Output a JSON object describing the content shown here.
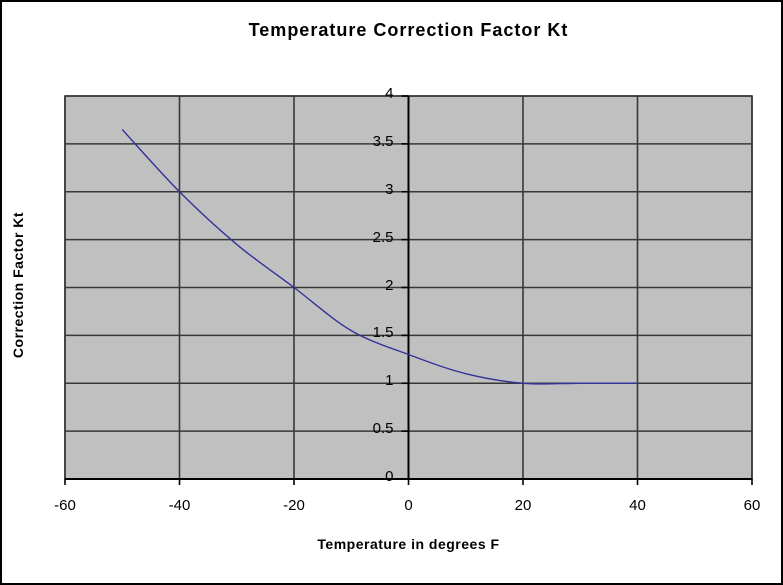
{
  "chart_data": {
    "type": "line",
    "title": "Temperature Correction Factor Kt",
    "xlabel": "Temperature in degrees F",
    "ylabel": "Correction Factor Kt",
    "x": [
      -50,
      -40,
      -30,
      -20,
      -10,
      0,
      10,
      20,
      30,
      40
    ],
    "y": [
      3.65,
      3.0,
      2.45,
      2.0,
      1.55,
      1.3,
      1.1,
      1.0,
      1.0,
      1.0
    ],
    "xlim": [
      -60,
      60
    ],
    "ylim": [
      0,
      4
    ],
    "xticks": [
      -60,
      -40,
      -20,
      0,
      20,
      40,
      60
    ],
    "yticks": [
      0,
      0.5,
      1,
      1.5,
      2,
      2.5,
      3,
      3.5,
      4
    ],
    "grid": true,
    "legend": false,
    "line_smooth": true,
    "value_axis_at_x": 0,
    "colors": {
      "line": "#333399",
      "plot_bg": "#c0c0c0",
      "gridline": "#383838",
      "axis": "#000000",
      "text": "#000000",
      "chart_bg": "#ffffff",
      "frame_border": "#000000"
    }
  }
}
